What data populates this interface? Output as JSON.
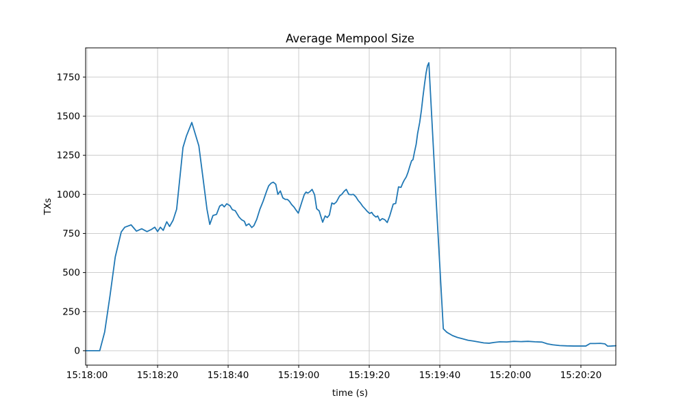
{
  "chart_data": {
    "type": "line",
    "title": "Average Mempool Size",
    "xlabel": "time (s)",
    "ylabel": "TXs",
    "grid": true,
    "grid_color": "#c6c6c6",
    "spine_color": "#000000",
    "series": [
      {
        "name": "average-mempool-size",
        "color": "#1f77b4",
        "line_width": 1.8
      }
    ],
    "x_unit": "seconds after 15:18:00",
    "xlim": [
      -0.4,
      149.9
    ],
    "ylim": [
      -92.25,
      1937.25
    ],
    "x_ticks": [
      {
        "t": 0,
        "label": "15:18:00"
      },
      {
        "t": 20,
        "label": "15:18:20"
      },
      {
        "t": 40,
        "label": "15:18:40"
      },
      {
        "t": 60,
        "label": "15:19:00"
      },
      {
        "t": 80,
        "label": "15:19:20"
      },
      {
        "t": 100,
        "label": "15:19:40"
      },
      {
        "t": 120,
        "label": "15:20:00"
      },
      {
        "t": 140,
        "label": "15:20:20"
      }
    ],
    "y_ticks": [
      {
        "v": 0,
        "label": "0"
      },
      {
        "v": 250,
        "label": "250"
      },
      {
        "v": 500,
        "label": "500"
      },
      {
        "v": 750,
        "label": "750"
      },
      {
        "v": 1000,
        "label": "1000"
      },
      {
        "v": 1250,
        "label": "1250"
      },
      {
        "v": 1500,
        "label": "1500"
      },
      {
        "v": 1750,
        "label": "1750"
      }
    ],
    "points": [
      [
        -0.4,
        0
      ],
      [
        2,
        0
      ],
      [
        3.6,
        0
      ],
      [
        5,
        120
      ],
      [
        6.5,
        350
      ],
      [
        8,
        600
      ],
      [
        9.7,
        760
      ],
      [
        10.7,
        790
      ],
      [
        12.5,
        805
      ],
      [
        14,
        765
      ],
      [
        15.5,
        780
      ],
      [
        17,
        762
      ],
      [
        18.2,
        775
      ],
      [
        19.2,
        790
      ],
      [
        20,
        762
      ],
      [
        20.8,
        790
      ],
      [
        21.6,
        770
      ],
      [
        22.6,
        825
      ],
      [
        23.4,
        795
      ],
      [
        24.4,
        835
      ],
      [
        25.4,
        905
      ],
      [
        27.2,
        1300
      ],
      [
        28.2,
        1375
      ],
      [
        29.7,
        1460
      ],
      [
        30.7,
        1385
      ],
      [
        31.7,
        1310
      ],
      [
        32.9,
        1100
      ],
      [
        34,
        905
      ],
      [
        34.8,
        808
      ],
      [
        35.7,
        865
      ],
      [
        36.7,
        872
      ],
      [
        37.6,
        925
      ],
      [
        38.3,
        935
      ],
      [
        38.9,
        920
      ],
      [
        39.6,
        940
      ],
      [
        40.5,
        928
      ],
      [
        41.2,
        902
      ],
      [
        42,
        896
      ],
      [
        43.1,
        855
      ],
      [
        43.8,
        838
      ],
      [
        44.6,
        828
      ],
      [
        45.1,
        800
      ],
      [
        45.9,
        812
      ],
      [
        46.7,
        788
      ],
      [
        47.3,
        800
      ],
      [
        48.1,
        840
      ],
      [
        49,
        905
      ],
      [
        49.9,
        955
      ],
      [
        50.9,
        1020
      ],
      [
        51.5,
        1055
      ],
      [
        52.2,
        1072
      ],
      [
        52.8,
        1078
      ],
      [
        53.5,
        1065
      ],
      [
        54.1,
        1000
      ],
      [
        54.8,
        1022
      ],
      [
        55.5,
        978
      ],
      [
        56.2,
        968
      ],
      [
        56.8,
        968
      ],
      [
        57.4,
        955
      ],
      [
        58,
        935
      ],
      [
        58.7,
        918
      ],
      [
        59.3,
        898
      ],
      [
        59.9,
        880
      ],
      [
        60.9,
        952
      ],
      [
        61.6,
        1000
      ],
      [
        62.1,
        1015
      ],
      [
        62.6,
        1008
      ],
      [
        63.2,
        1018
      ],
      [
        63.8,
        1032
      ],
      [
        64.5,
        998
      ],
      [
        65.1,
        908
      ],
      [
        65.8,
        895
      ],
      [
        66.3,
        858
      ],
      [
        66.8,
        822
      ],
      [
        67.5,
        862
      ],
      [
        68.1,
        852
      ],
      [
        68.7,
        868
      ],
      [
        69.4,
        945
      ],
      [
        70,
        938
      ],
      [
        70.7,
        952
      ],
      [
        71.6,
        990
      ],
      [
        72.2,
        1000
      ],
      [
        72.9,
        1020
      ],
      [
        73.5,
        1032
      ],
      [
        74.2,
        1000
      ],
      [
        74.9,
        998
      ],
      [
        75.5,
        1000
      ],
      [
        76.2,
        985
      ],
      [
        76.9,
        960
      ],
      [
        77.5,
        945
      ],
      [
        78.1,
        925
      ],
      [
        78.8,
        908
      ],
      [
        79.4,
        892
      ],
      [
        80.1,
        878
      ],
      [
        80.7,
        885
      ],
      [
        81.2,
        868
      ],
      [
        81.9,
        855
      ],
      [
        82.4,
        862
      ],
      [
        83,
        832
      ],
      [
        83.7,
        845
      ],
      [
        84.4,
        838
      ],
      [
        85.1,
        820
      ],
      [
        85.8,
        862
      ],
      [
        86.8,
        938
      ],
      [
        87.5,
        942
      ],
      [
        88.3,
        1048
      ],
      [
        89,
        1045
      ],
      [
        89.5,
        1072
      ],
      [
        89.9,
        1090
      ],
      [
        90.5,
        1112
      ],
      [
        91,
        1142
      ],
      [
        91.5,
        1180
      ],
      [
        92,
        1215
      ],
      [
        92.4,
        1222
      ],
      [
        92.8,
        1268
      ],
      [
        93.3,
        1320
      ],
      [
        93.7,
        1388
      ],
      [
        94.3,
        1460
      ],
      [
        94.8,
        1540
      ],
      [
        95.2,
        1620
      ],
      [
        95.7,
        1710
      ],
      [
        96.1,
        1775
      ],
      [
        96.5,
        1822
      ],
      [
        96.9,
        1842
      ],
      [
        99,
        950
      ],
      [
        101,
        140
      ],
      [
        102,
        118
      ],
      [
        103.6,
        97
      ],
      [
        105,
        85
      ],
      [
        106.5,
        76
      ],
      [
        108,
        67
      ],
      [
        109.5,
        62
      ],
      [
        111,
        56
      ],
      [
        112.5,
        50
      ],
      [
        114,
        48
      ],
      [
        115.5,
        53
      ],
      [
        117,
        57
      ],
      [
        119,
        56
      ],
      [
        121,
        60
      ],
      [
        123,
        58
      ],
      [
        125,
        60
      ],
      [
        127,
        57
      ],
      [
        129,
        55
      ],
      [
        130.5,
        44
      ],
      [
        132,
        38
      ],
      [
        134,
        33
      ],
      [
        136,
        31
      ],
      [
        138,
        30
      ],
      [
        140,
        30
      ],
      [
        141.4,
        30
      ],
      [
        142.6,
        46
      ],
      [
        144,
        46
      ],
      [
        145.5,
        47
      ],
      [
        146.8,
        44
      ],
      [
        147.6,
        29
      ],
      [
        148.6,
        30
      ],
      [
        149.9,
        32
      ]
    ]
  }
}
